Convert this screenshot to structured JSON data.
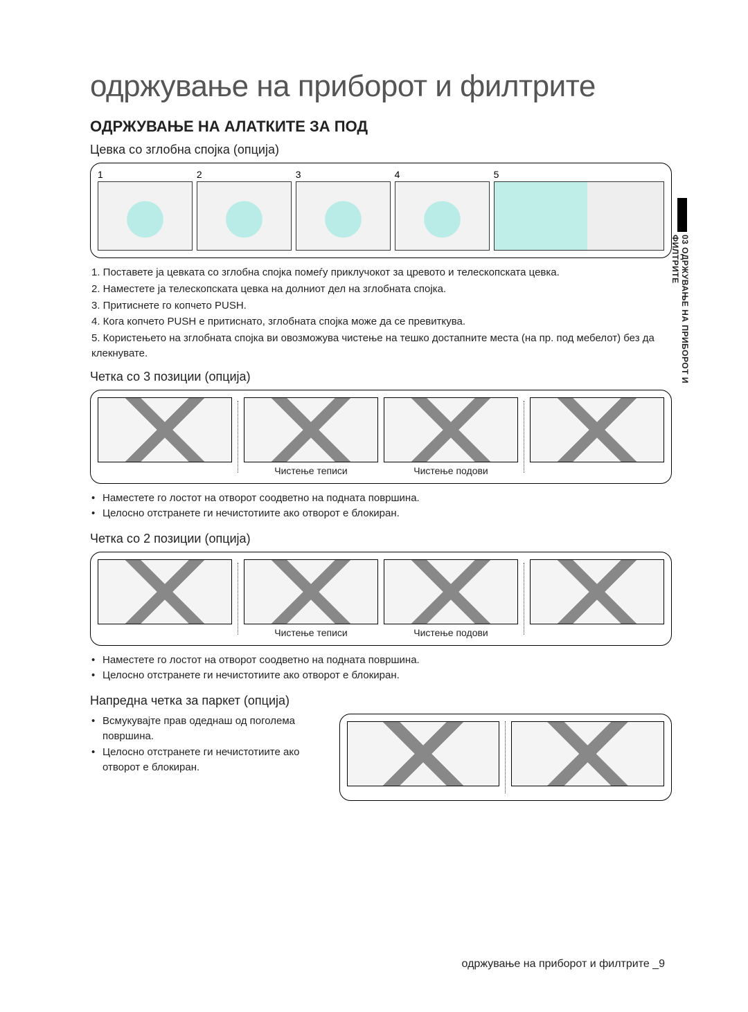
{
  "page": {
    "main_title": "одржување на приборот и филтрите",
    "section_title": "ОДРЖУВАЊЕ НА АЛАТКИТЕ ЗА ПОД",
    "side_tab": "03 ОДРЖУВАЊЕ НА ПРИБОРОТ И ФИЛТРИТЕ",
    "footer": "одржување на приборот и филтрите _9"
  },
  "joint_pipe": {
    "title": "Цевка со зглобна спојка (опција)",
    "steps": [
      "1",
      "2",
      "3",
      "4",
      "5"
    ],
    "instructions": [
      "1. Поставете ја цевката со зглобна спојка помеѓу приклучокот за цревото и телескопската цевка.",
      "2. Наместете ја телескопската цевка на долниот дел на зглобната спојка.",
      "3. Притиснете го копчето PUSH.",
      "4. Кога копчето PUSH е притиснато, зглобната спојка може да се превиткува.",
      "5. Користењето на зглобната спојка ви овозможува чистење на тешко достапните места (на пр. под мебелот) без да клекнувате."
    ]
  },
  "brush3": {
    "title": "Четка со 3 позиции (опција)",
    "captions": {
      "carpet": "Чистење теписи",
      "floor": "Чистење подови"
    },
    "bullets": [
      "Наместете го лостот на отворот соодветно на подната површина.",
      "Целосно отстранете ги нечистотиите ако отворот е блокиран."
    ]
  },
  "brush2": {
    "title": "Четка со 2 позиции (опција)",
    "captions": {
      "carpet": "Чистење теписи",
      "floor": "Чистење подови"
    },
    "bullets": [
      "Наместете го лостот на отворот соодветно на подната површина.",
      "Целосно отстранете ги нечистотиите ако отворот е блокиран."
    ]
  },
  "parquet": {
    "title": "Напредна четка за паркет (опција)",
    "bullets": [
      "Всмукувајте прав одеднаш од поголема површина.",
      "Целосно отстранете ги нечистотиите ако отворот е блокиран."
    ]
  },
  "colors": {
    "text": "#222222",
    "title_gray": "#555555",
    "border": "#000000",
    "accent_teal": "#b9ece6"
  }
}
